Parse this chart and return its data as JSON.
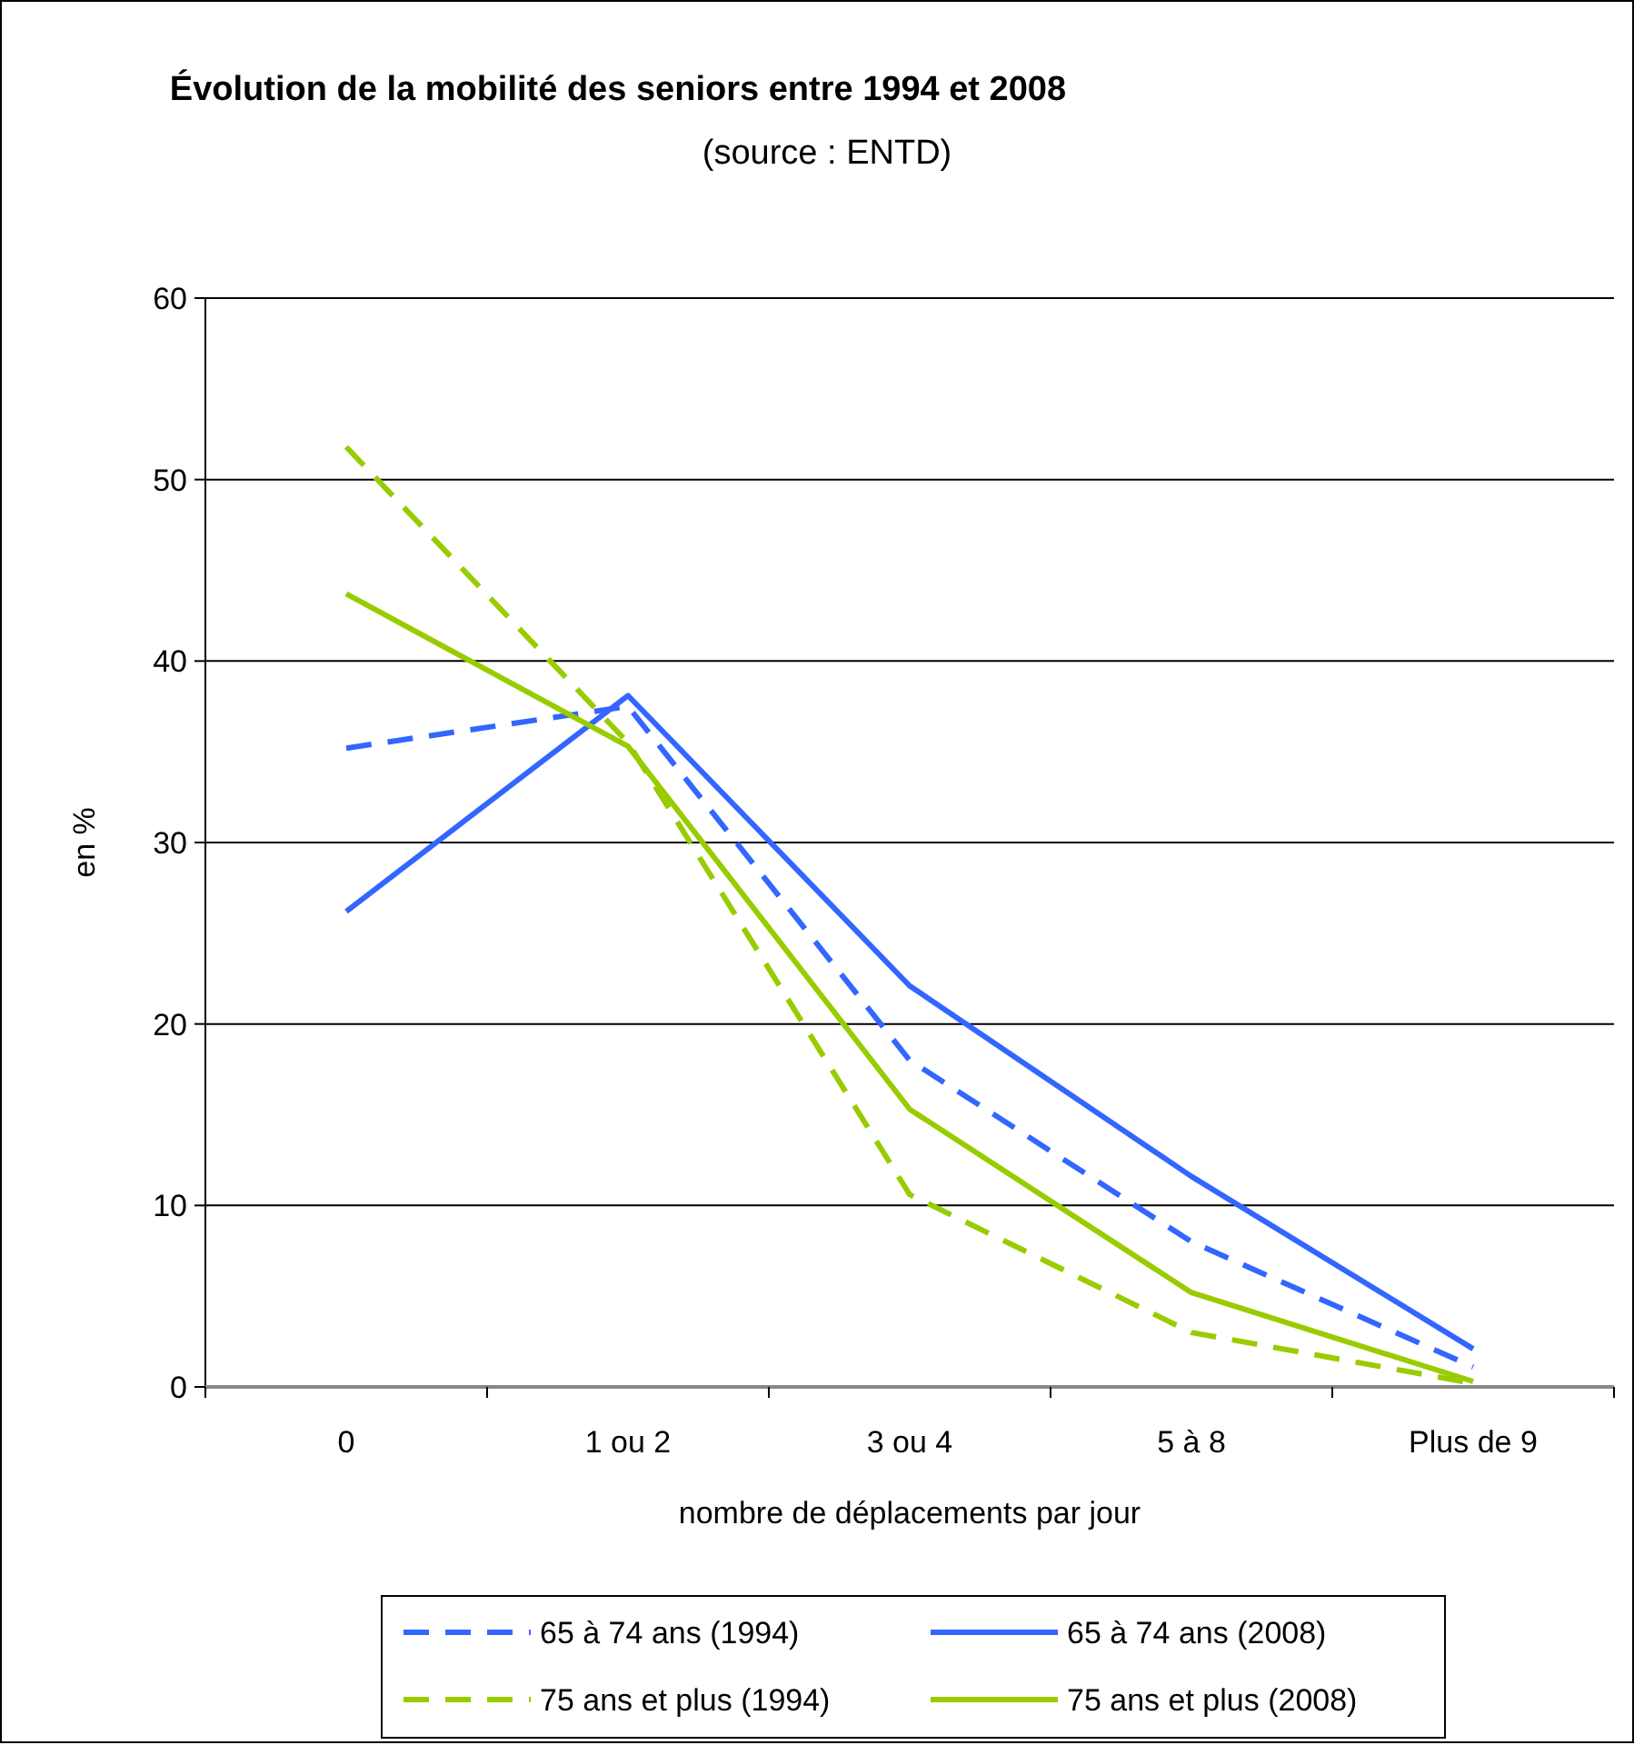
{
  "chart_data": {
    "type": "line",
    "title": "Évolution de la mobilité des seniors entre 1994 et 2008",
    "subtitle": "(source : ENTD)",
    "xlabel": "nombre de déplacements par jour",
    "ylabel": "en %",
    "categories": [
      "0",
      "1 ou 2",
      "3 ou 4",
      "5 à 8",
      "Plus de 9"
    ],
    "series": [
      {
        "name": "65 à 74 ans (1994)",
        "color": "#3366ff",
        "line_style": "dashed",
        "values": [
          35.2,
          37.5,
          18,
          8,
          1.1
        ]
      },
      {
        "name": "65 à 74 ans (2008)",
        "color": "#3366ff",
        "line_style": "solid",
        "values": [
          26.2,
          38.1,
          22.1,
          11.6,
          2.1
        ]
      },
      {
        "name": "75 ans et plus (1994)",
        "color": "#99cc00",
        "line_style": "dashed",
        "values": [
          51.8,
          35.5,
          10.6,
          3,
          0.2
        ]
      },
      {
        "name": "75 ans et plus (2008)",
        "color": "#99cc00",
        "line_style": "solid",
        "values": [
          43.7,
          35.3,
          15.3,
          5.2,
          0.3
        ]
      }
    ],
    "ylim": [
      0,
      60
    ],
    "yticks": [
      0,
      10,
      20,
      30,
      40,
      50,
      60
    ],
    "grid": "y",
    "legend": "bottom",
    "marker": "none"
  }
}
